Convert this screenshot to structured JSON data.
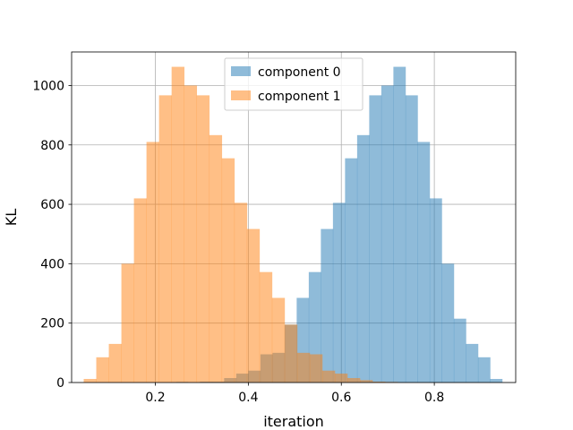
{
  "chart_data": {
    "type": "histogram",
    "xlabel": "iteration",
    "ylabel": "KL",
    "xlim": [
      0.02,
      0.975
    ],
    "ylim": [
      0,
      1113
    ],
    "xticks": [
      0.2,
      0.4,
      0.6,
      0.8
    ],
    "xtick_labels": [
      "0.2",
      "0.4",
      "0.6",
      "0.8"
    ],
    "yticks": [
      0,
      200,
      400,
      600,
      800,
      1000
    ],
    "ytick_labels": [
      "0",
      "200",
      "400",
      "600",
      "800",
      "1000"
    ],
    "grid": true,
    "legend_position": "top-center",
    "series": [
      {
        "name": "component 0",
        "color": "#1f77b4",
        "opacity": 0.5,
        "bins": [
          {
            "x0": 0.245,
            "x1": 0.27,
            "count": 2
          },
          {
            "x0": 0.27,
            "x1": 0.296,
            "count": 0
          },
          {
            "x0": 0.296,
            "x1": 0.322,
            "count": 3
          },
          {
            "x0": 0.322,
            "x1": 0.348,
            "count": 3
          },
          {
            "x0": 0.348,
            "x1": 0.374,
            "count": 15
          },
          {
            "x0": 0.374,
            "x1": 0.4,
            "count": 30
          },
          {
            "x0": 0.4,
            "x1": 0.426,
            "count": 40
          },
          {
            "x0": 0.426,
            "x1": 0.452,
            "count": 95
          },
          {
            "x0": 0.452,
            "x1": 0.478,
            "count": 100
          },
          {
            "x0": 0.478,
            "x1": 0.504,
            "count": 195
          },
          {
            "x0": 0.504,
            "x1": 0.53,
            "count": 285
          },
          {
            "x0": 0.53,
            "x1": 0.556,
            "count": 372
          },
          {
            "x0": 0.556,
            "x1": 0.582,
            "count": 517
          },
          {
            "x0": 0.582,
            "x1": 0.608,
            "count": 605
          },
          {
            "x0": 0.608,
            "x1": 0.634,
            "count": 755
          },
          {
            "x0": 0.634,
            "x1": 0.66,
            "count": 833
          },
          {
            "x0": 0.66,
            "x1": 0.686,
            "count": 967
          },
          {
            "x0": 0.686,
            "x1": 0.712,
            "count": 1000
          },
          {
            "x0": 0.712,
            "x1": 0.738,
            "count": 1063
          },
          {
            "x0": 0.738,
            "x1": 0.764,
            "count": 967
          },
          {
            "x0": 0.764,
            "x1": 0.79,
            "count": 810
          },
          {
            "x0": 0.79,
            "x1": 0.816,
            "count": 620
          },
          {
            "x0": 0.816,
            "x1": 0.842,
            "count": 400
          },
          {
            "x0": 0.842,
            "x1": 0.868,
            "count": 215
          },
          {
            "x0": 0.868,
            "x1": 0.894,
            "count": 130
          },
          {
            "x0": 0.894,
            "x1": 0.92,
            "count": 85
          },
          {
            "x0": 0.92,
            "x1": 0.946,
            "count": 12
          }
        ]
      },
      {
        "name": "component 1",
        "color": "#ff7f0e",
        "opacity": 0.5,
        "bins": [
          {
            "x0": 0.046,
            "x1": 0.073,
            "count": 12
          },
          {
            "x0": 0.073,
            "x1": 0.1,
            "count": 85
          },
          {
            "x0": 0.1,
            "x1": 0.127,
            "count": 130
          },
          {
            "x0": 0.127,
            "x1": 0.154,
            "count": 400
          },
          {
            "x0": 0.154,
            "x1": 0.181,
            "count": 620
          },
          {
            "x0": 0.181,
            "x1": 0.208,
            "count": 810
          },
          {
            "x0": 0.208,
            "x1": 0.235,
            "count": 967
          },
          {
            "x0": 0.235,
            "x1": 0.262,
            "count": 1063
          },
          {
            "x0": 0.262,
            "x1": 0.289,
            "count": 1000
          },
          {
            "x0": 0.289,
            "x1": 0.316,
            "count": 967
          },
          {
            "x0": 0.316,
            "x1": 0.343,
            "count": 833
          },
          {
            "x0": 0.343,
            "x1": 0.37,
            "count": 755
          },
          {
            "x0": 0.37,
            "x1": 0.397,
            "count": 605
          },
          {
            "x0": 0.397,
            "x1": 0.424,
            "count": 517
          },
          {
            "x0": 0.424,
            "x1": 0.451,
            "count": 372
          },
          {
            "x0": 0.451,
            "x1": 0.478,
            "count": 285
          },
          {
            "x0": 0.478,
            "x1": 0.505,
            "count": 195
          },
          {
            "x0": 0.505,
            "x1": 0.532,
            "count": 100
          },
          {
            "x0": 0.532,
            "x1": 0.559,
            "count": 95
          },
          {
            "x0": 0.559,
            "x1": 0.586,
            "count": 40
          },
          {
            "x0": 0.586,
            "x1": 0.613,
            "count": 30
          },
          {
            "x0": 0.613,
            "x1": 0.64,
            "count": 15
          },
          {
            "x0": 0.64,
            "x1": 0.667,
            "count": 8
          },
          {
            "x0": 0.667,
            "x1": 0.694,
            "count": 3
          },
          {
            "x0": 0.694,
            "x1": 0.721,
            "count": 2
          }
        ]
      }
    ]
  }
}
